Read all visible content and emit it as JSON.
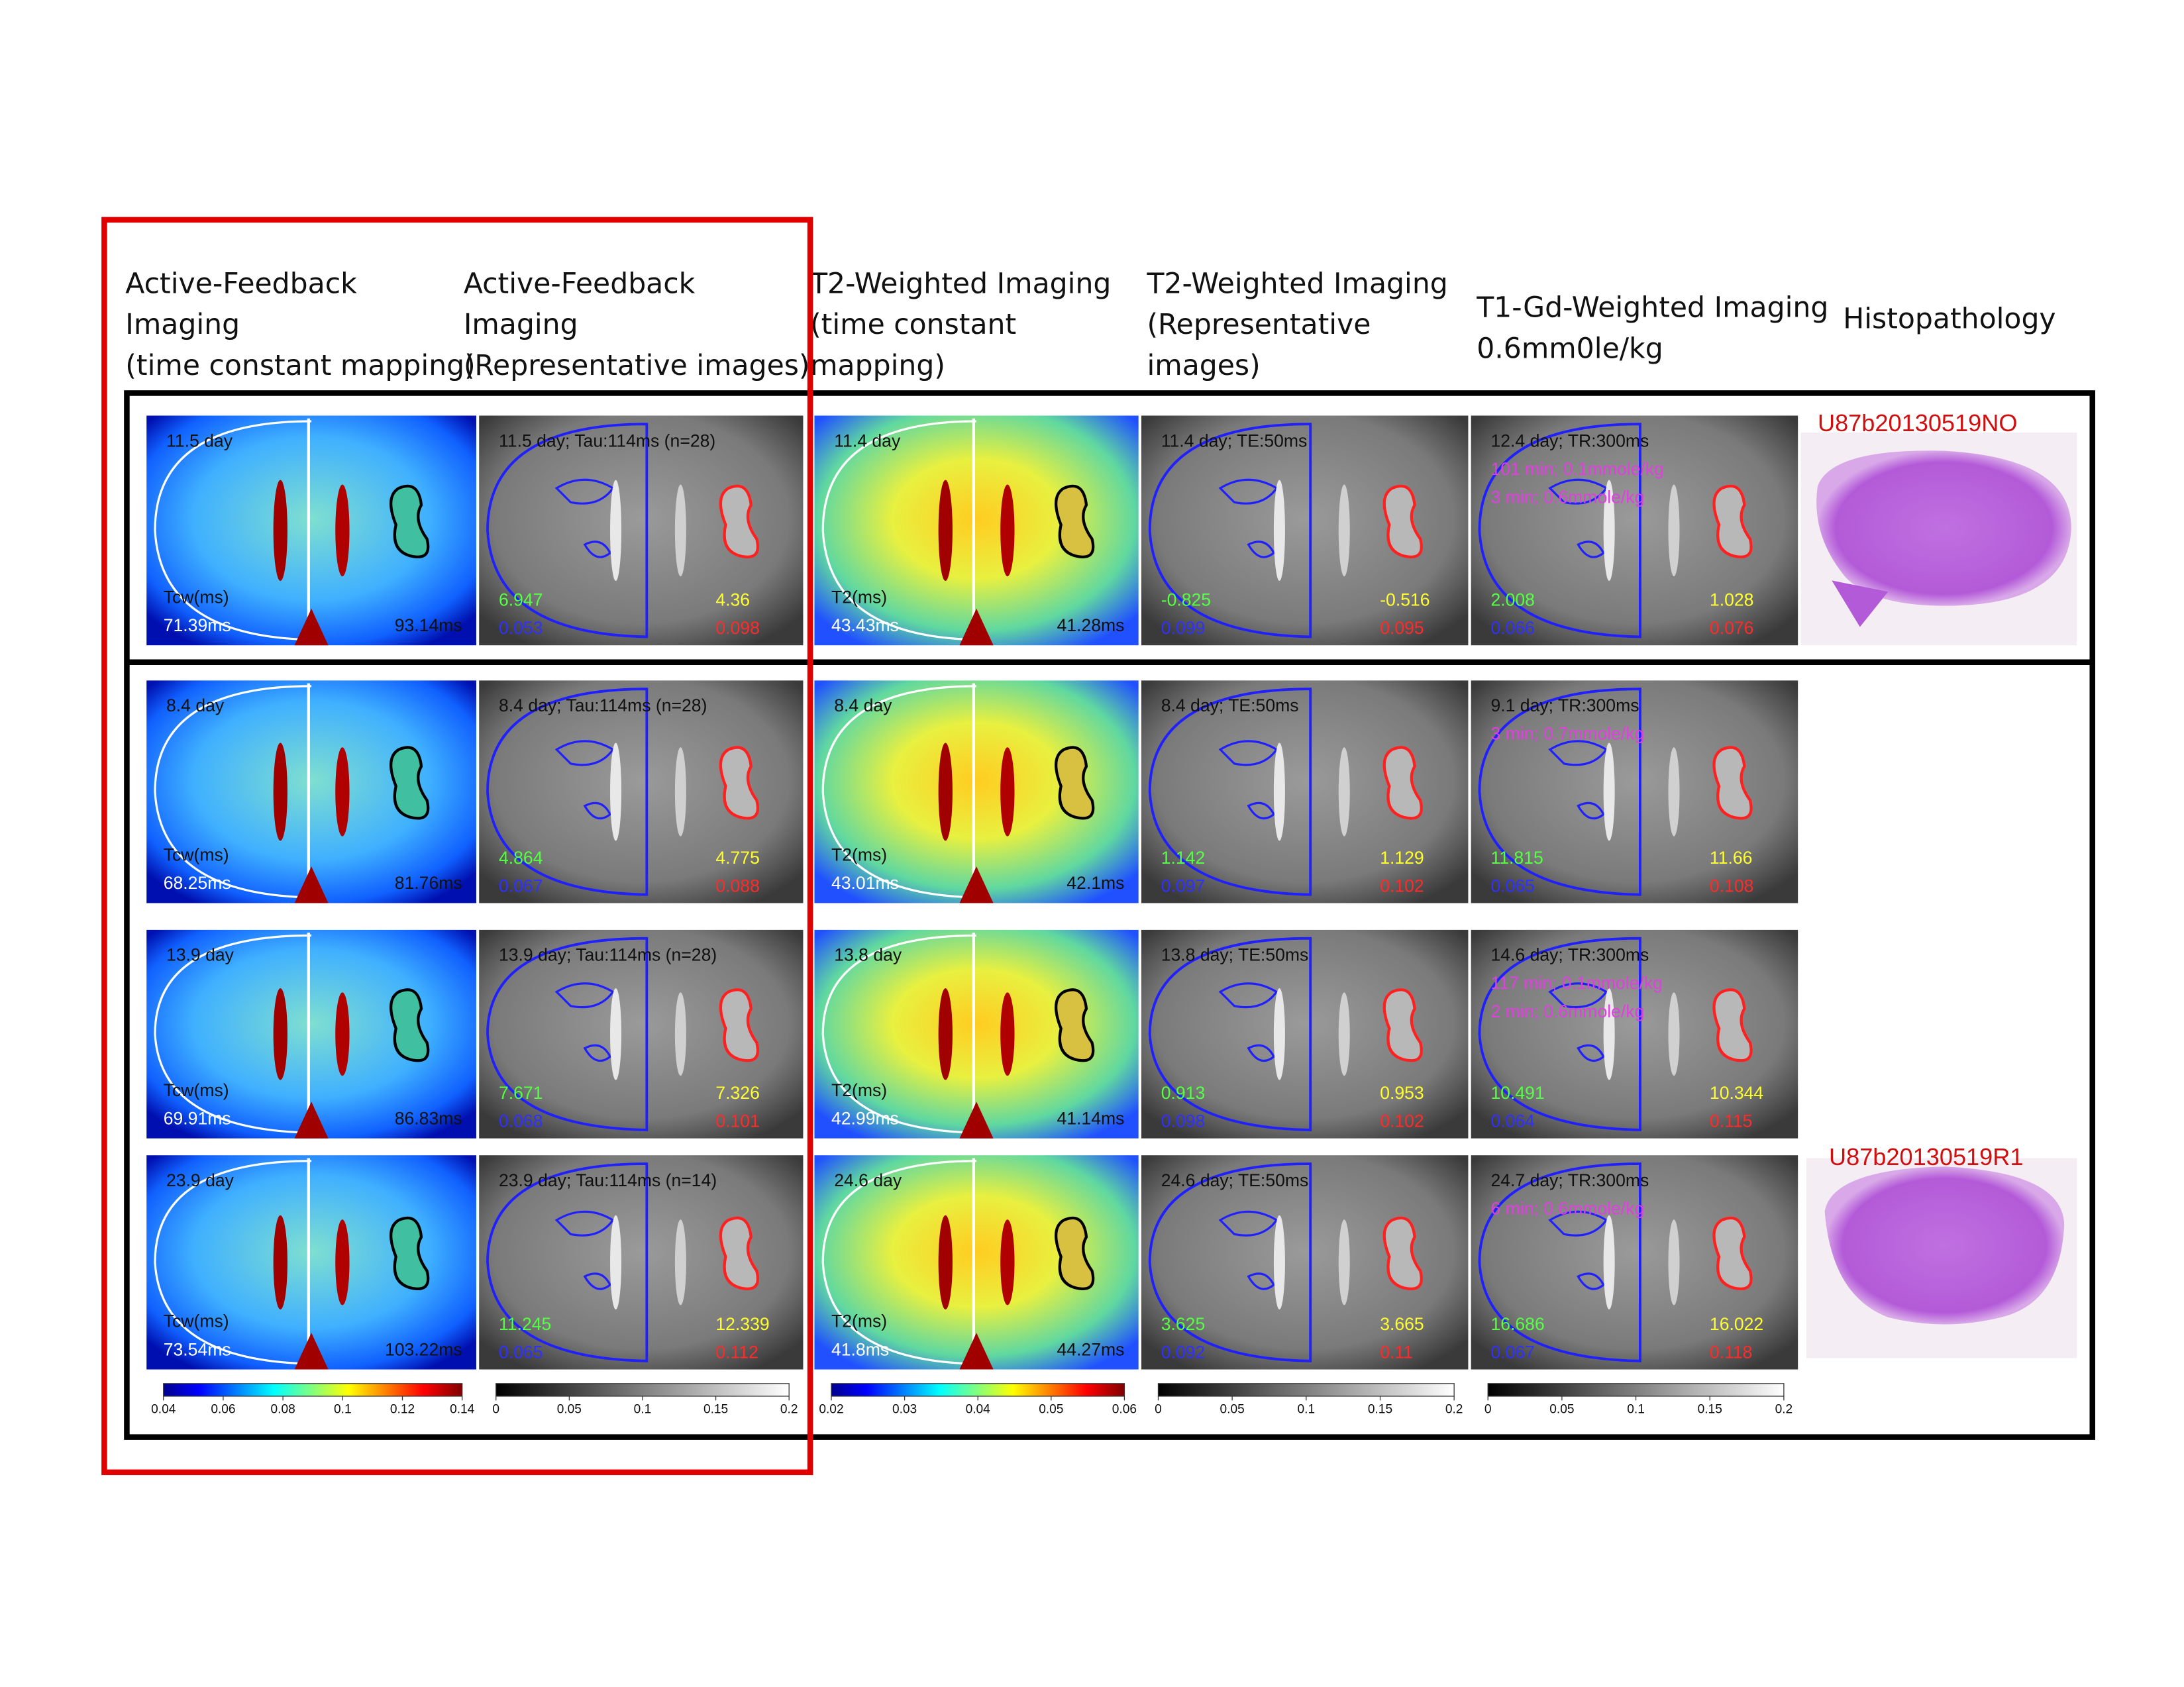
{
  "columns": [
    {
      "header": [
        "Active-Feedback",
        "Imaging",
        "(time constant mapping)"
      ],
      "colorbar": [
        "0.04",
        "0.06",
        "0.08",
        "0.1",
        "0.12",
        "0.14"
      ]
    },
    {
      "header": [
        "Active-Feedback",
        "Imaging",
        "(Representative images)"
      ],
      "colorbar": [
        "0",
        "0.05",
        "0.1",
        "0.15",
        "0.2"
      ]
    },
    {
      "header": [
        "T2-Weighted Imaging",
        "(time constant",
        "mapping)"
      ],
      "colorbar": [
        "0.02",
        "0.03",
        "0.04",
        "0.05",
        "0.06"
      ]
    },
    {
      "header": [
        "T2-Weighted Imaging",
        "(Representative",
        "images)"
      ],
      "colorbar": [
        "0",
        "0.05",
        "0.1",
        "0.15",
        "0.2"
      ]
    },
    {
      "header": [
        "T1-Gd-Weighted Imaging",
        "0.6mm0le/kg"
      ],
      "colorbar": [
        "0",
        "0.05",
        "0.1",
        "0.15",
        "0.2"
      ]
    },
    {
      "header": [
        "Histopathology"
      ]
    }
  ],
  "specimens": [
    "U87b20130519NO",
    "U87b20130519R1"
  ],
  "rows": [
    {
      "panels": [
        {
          "title": "11.5 day",
          "unit": "Tcw(ms)",
          "left": "71.39ms",
          "right": "93.14ms"
        },
        {
          "title": "11.5 day; Tau:114ms (n=28)",
          "left": [
            "6.947",
            "0.053"
          ],
          "right": [
            "4.36",
            "0.098"
          ]
        },
        {
          "title": "11.4 day",
          "unit": "T2(ms)",
          "left": "43.43ms",
          "right": "41.28ms"
        },
        {
          "title": "11.4 day; TE:50ms",
          "left": [
            "-0.825",
            "0.099"
          ],
          "right": [
            "-0.516",
            "0.095"
          ]
        },
        {
          "title": "12.4 day; TR:300ms",
          "notes": [
            "101 min; 0.1mmole/kg",
            "3 min; 0.6mmole/kg"
          ],
          "left": [
            "2.008",
            "0.066"
          ],
          "right": [
            "1.028",
            "0.076"
          ]
        }
      ]
    },
    {
      "panels": [
        {
          "title": "8.4 day",
          "unit": "Tcw(ms)",
          "left": "68.25ms",
          "right": "81.76ms"
        },
        {
          "title": "8.4 day; Tau:114ms (n=28)",
          "left": [
            "4.864",
            "0.067"
          ],
          "right": [
            "4.775",
            "0.088"
          ]
        },
        {
          "title": "8.4 day",
          "unit": "T2(ms)",
          "left": "43.01ms",
          "right": "42.1ms"
        },
        {
          "title": "8.4 day; TE:50ms",
          "left": [
            "1.142",
            "0.097"
          ],
          "right": [
            "1.129",
            "0.102"
          ]
        },
        {
          "title": "9.1 day; TR:300ms",
          "notes": [
            "3 min; 0.7mmole/kg"
          ],
          "left": [
            "11.815",
            "0.065"
          ],
          "right": [
            "11.66",
            "0.108"
          ]
        }
      ]
    },
    {
      "panels": [
        {
          "title": "13.9 day",
          "unit": "Tcw(ms)",
          "left": "69.91ms",
          "right": "86.83ms"
        },
        {
          "title": "13.9 day; Tau:114ms (n=28)",
          "left": [
            "7.671",
            "0.068"
          ],
          "right": [
            "7.326",
            "0.101"
          ]
        },
        {
          "title": "13.8 day",
          "unit": "T2(ms)",
          "left": "42.99ms",
          "right": "41.14ms"
        },
        {
          "title": "13.8 day; TE:50ms",
          "left": [
            "0.913",
            "0.098"
          ],
          "right": [
            "0.953",
            "0.102"
          ]
        },
        {
          "title": "14.6 day; TR:300ms",
          "notes": [
            "117 min; 0.1mmole/kg",
            "2 min; 0.6mmole/kg"
          ],
          "left": [
            "10.491",
            "0.064"
          ],
          "right": [
            "10.344",
            "0.115"
          ]
        }
      ]
    },
    {
      "panels": [
        {
          "title": "23.9 day",
          "unit": "Tcw(ms)",
          "left": "73.54ms",
          "right": "103.22ms"
        },
        {
          "title": "23.9 day; Tau:114ms (n=14)",
          "left": [
            "11.245",
            "0.065"
          ],
          "right": [
            "12.339",
            "0.112"
          ]
        },
        {
          "title": "24.6 day",
          "unit": "T2(ms)",
          "left": "41.8ms",
          "right": "44.27ms"
        },
        {
          "title": "24.6 day; TE:50ms",
          "left": [
            "3.625",
            "0.092"
          ],
          "right": [
            "3.665",
            "0.11"
          ]
        },
        {
          "title": "24.7 day; TR:300ms",
          "notes": [
            "6 min; 0.6mmole/kg"
          ],
          "left": [
            "16.686",
            "0.067"
          ],
          "right": [
            "16.022",
            "0.118"
          ]
        }
      ]
    }
  ]
}
